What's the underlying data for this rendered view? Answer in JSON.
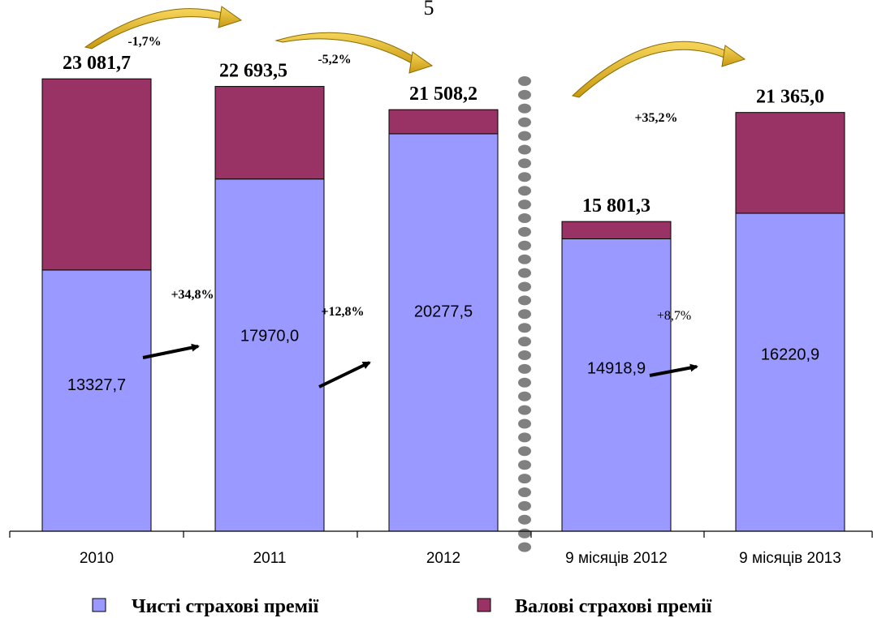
{
  "page_number": "5",
  "chart_data": {
    "type": "bar",
    "stacked": true,
    "categories": [
      "2010",
      "2011",
      "2012",
      "9 місяців 2012",
      "9 місяців 2013"
    ],
    "series": [
      {
        "name": "Чисті страхові премії",
        "values": [
          13327.7,
          17970.0,
          20277.5,
          14918.9,
          16220.9
        ],
        "color": "#9999ff"
      },
      {
        "name": "Валові страхові премії",
        "values": [
          9754.0,
          4723.5,
          1230.7,
          882.4,
          5144.1
        ],
        "color": "#993366"
      }
    ],
    "totals": [
      23081.7,
      22693.5,
      21508.2,
      15801.3,
      21365.0
    ],
    "inside_labels": [
      "13327,7",
      "17970,0",
      "20277,5",
      "14918,9",
      "16220,9"
    ],
    "total_labels": [
      "23 081,7",
      "22 693,5",
      "21 508,2",
      "15 801,3",
      "21 365,0"
    ],
    "gross_changes": [
      "-1,7%",
      "-5,2%",
      "+35,2%"
    ],
    "net_changes": [
      "+34,8%",
      "+12,8%",
      "+8,7%"
    ],
    "ylim": [
      0,
      24000
    ],
    "grid": false,
    "legend_position": "bottom",
    "separator": "dotted vertical line between 2012 and 9 місяців 2012"
  }
}
